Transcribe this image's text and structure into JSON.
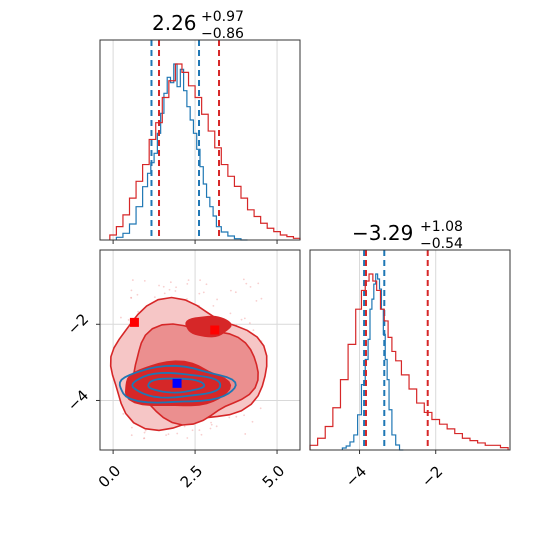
{
  "chart_data": {
    "type": "corner",
    "parameters": [
      {
        "title_main": "2.26",
        "title_plus": "+0.97",
        "title_minus": "−0.86",
        "xticks": [
          {
            "value": 0.0,
            "label": "0.0"
          },
          {
            "value": 2.5,
            "label": "2.5"
          },
          {
            "value": 5.0,
            "label": "5.0"
          }
        ],
        "range": [
          -0.4,
          5.7
        ]
      },
      {
        "title_main": "−3.29",
        "title_plus": "+1.08",
        "title_minus": "−0.54",
        "xticks": [
          {
            "value": -4,
            "label": "−4"
          },
          {
            "value": -2,
            "label": "−2"
          }
        ],
        "range": [
          -5.3,
          -0.05
        ]
      }
    ],
    "scatter_yticks": [
      {
        "value": -2,
        "label": "−2"
      },
      {
        "value": -4,
        "label": "−4"
      }
    ],
    "scatter_yrange": [
      -5.3,
      -0.05
    ],
    "series": [
      {
        "color": "#1f77b4",
        "param1_quantiles": [
          1.17,
          2.62
        ],
        "param2_quantiles": [
          -3.88,
          -3.35
        ],
        "hist1": {
          "x": [
            0.2,
            0.4,
            0.6,
            0.8,
            1.0,
            1.1,
            1.2,
            1.3,
            1.4,
            1.5,
            1.6,
            1.7,
            1.8,
            1.9,
            2.0,
            2.1,
            2.2,
            2.3,
            2.4,
            2.5,
            2.6,
            2.7,
            2.8,
            2.9,
            3.0,
            3.1,
            3.2,
            3.4,
            3.6,
            3.8,
            4.0
          ],
          "counts": [
            2,
            5,
            12,
            25,
            40,
            50,
            58,
            65,
            80,
            95,
            110,
            122,
            118,
            132,
            115,
            128,
            112,
            100,
            90,
            80,
            68,
            55,
            42,
            32,
            25,
            18,
            10,
            6,
            3,
            1,
            0
          ]
        },
        "hist2": {
          "x": [
            -4.4,
            -4.3,
            -4.2,
            -4.1,
            -4.0,
            -3.9,
            -3.8,
            -3.75,
            -3.7,
            -3.65,
            -3.6,
            -3.55,
            -3.5,
            -3.45,
            -3.4,
            -3.35,
            -3.3,
            -3.25,
            -3.2,
            -3.1,
            -3.0,
            -2.9
          ],
          "counts": [
            2,
            4,
            8,
            15,
            35,
            65,
            90,
            110,
            140,
            150,
            165,
            175,
            170,
            160,
            140,
            115,
            90,
            70,
            40,
            15,
            5,
            0
          ]
        },
        "marker": {
          "x": 1.95,
          "y": -3.55
        }
      },
      {
        "color": "#d62728",
        "param1_quantiles": [
          1.4,
          3.23
        ],
        "param2_quantiles": [
          -3.83,
          -2.21
        ],
        "hist1": {
          "x": [
            0.0,
            0.2,
            0.4,
            0.6,
            0.8,
            1.0,
            1.2,
            1.4,
            1.6,
            1.8,
            2.0,
            2.2,
            2.4,
            2.6,
            2.8,
            3.0,
            3.2,
            3.4,
            3.6,
            3.8,
            4.0,
            4.2,
            4.4,
            4.6,
            4.8,
            5.0,
            5.2,
            5.4,
            5.6
          ],
          "counts": [
            3,
            8,
            15,
            25,
            35,
            45,
            60,
            70,
            85,
            95,
            105,
            100,
            92,
            85,
            75,
            65,
            55,
            45,
            38,
            32,
            25,
            18,
            14,
            10,
            7,
            5,
            3,
            2,
            1
          ]
        },
        "hist2": {
          "x": [
            -5.2,
            -5.0,
            -4.8,
            -4.6,
            -4.4,
            -4.2,
            -4.0,
            -3.9,
            -3.8,
            -3.7,
            -3.6,
            -3.5,
            -3.4,
            -3.3,
            -3.2,
            -3.1,
            -3.0,
            -2.8,
            -2.6,
            -2.4,
            -2.2,
            -2.0,
            -1.8,
            -1.6,
            -1.4,
            -1.2,
            -1.0,
            -0.8,
            -0.6,
            -0.4,
            -0.2
          ],
          "counts": [
            2,
            5,
            10,
            18,
            30,
            45,
            60,
            68,
            72,
            75,
            72,
            68,
            60,
            55,
            48,
            42,
            38,
            32,
            26,
            20,
            16,
            13,
            11,
            9,
            7,
            5,
            4,
            3,
            2,
            2,
            1
          ]
        },
        "marker": {
          "x": 3.1,
          "y": -2.15
        }
      }
    ],
    "extra_markers": [
      {
        "color": "#ff0000",
        "x": 0.65,
        "y": -1.95
      }
    ]
  }
}
